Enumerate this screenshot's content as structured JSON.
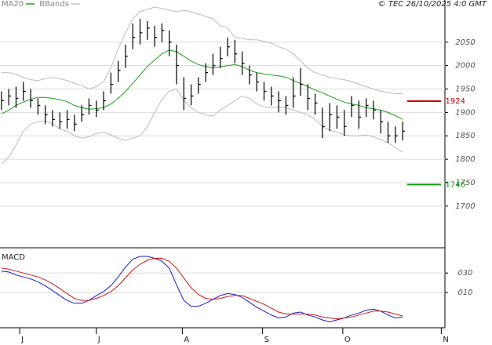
{
  "chart_data": [
    {
      "type": "ohlc",
      "annotation": "© TEC 26/10/2025 4:0 GMT",
      "x": [
        0,
        1,
        2,
        3,
        4,
        5,
        6,
        7,
        8,
        9,
        10,
        11,
        12,
        13,
        14,
        15,
        16,
        17,
        18,
        19,
        20,
        21,
        22,
        23,
        24,
        25,
        26,
        27,
        28,
        29,
        30,
        31,
        32,
        33,
        34,
        35,
        36,
        37,
        38,
        39,
        40,
        41,
        42,
        43,
        44,
        45,
        46,
        47,
        48,
        49,
        50,
        51,
        52,
        53,
        54,
        55
      ],
      "high": [
        1945,
        1950,
        1955,
        1965,
        1950,
        1930,
        1915,
        1905,
        1900,
        1905,
        1895,
        1915,
        1930,
        1925,
        1945,
        1985,
        2010,
        2045,
        2090,
        2100,
        2095,
        2085,
        2090,
        2075,
        2045,
        1975,
        1960,
        1975,
        2005,
        2025,
        2040,
        2060,
        2055,
        2030,
        2000,
        1985,
        1965,
        1955,
        1945,
        1935,
        1975,
        1995,
        1960,
        1940,
        1910,
        1920,
        1915,
        1905,
        1935,
        1925,
        1930,
        1925,
        1905,
        1880,
        1870,
        1880
      ],
      "low": [
        1905,
        1915,
        1910,
        1925,
        1910,
        1895,
        1875,
        1870,
        1865,
        1865,
        1860,
        1880,
        1895,
        1890,
        1905,
        1940,
        1965,
        1995,
        2035,
        2045,
        2055,
        2040,
        2050,
        2020,
        1960,
        1905,
        1915,
        1940,
        1965,
        1980,
        1995,
        2020,
        2005,
        1980,
        1960,
        1945,
        1925,
        1915,
        1900,
        1895,
        1910,
        1935,
        1905,
        1895,
        1845,
        1860,
        1865,
        1850,
        1890,
        1865,
        1890,
        1885,
        1855,
        1835,
        1835,
        1840
      ],
      "close": [
        1925,
        1935,
        1930,
        1945,
        1925,
        1915,
        1895,
        1885,
        1880,
        1885,
        1875,
        1895,
        1915,
        1905,
        1925,
        1960,
        1990,
        2020,
        2060,
        2070,
        2080,
        2060,
        2075,
        2050,
        2000,
        1930,
        1935,
        1960,
        1985,
        2000,
        2015,
        2040,
        2025,
        2005,
        1980,
        1965,
        1945,
        1935,
        1925,
        1915,
        1935,
        1960,
        1930,
        1920,
        1870,
        1895,
        1890,
        1870,
        1915,
        1890,
        1915,
        1905,
        1880,
        1850,
        1850,
        1860
      ],
      "bar_color": "#000000",
      "series": [
        {
          "name": "MA20",
          "color": "#1aa01a",
          "values": [
            1897,
            1905,
            1915,
            1922,
            1928,
            1932,
            1932,
            1930,
            1927,
            1923,
            1915,
            1910,
            1907,
            1908,
            1910,
            1918,
            1930,
            1945,
            1962,
            1980,
            1998,
            2012,
            2025,
            2033,
            2030,
            2020,
            2010,
            2002,
            1998,
            1995,
            1997,
            2000,
            2002,
            1998,
            1990,
            1985,
            1982,
            1980,
            1978,
            1975,
            1968,
            1962,
            1955,
            1948,
            1942,
            1935,
            1928,
            1922,
            1918,
            1915,
            1910,
            1908,
            1905,
            1900,
            1893,
            1885
          ]
        },
        {
          "name": "BBands",
          "color": "#bdbdbd",
          "upper": [
            1985,
            1985,
            1982,
            1975,
            1970,
            1968,
            1972,
            1975,
            1972,
            1968,
            1962,
            1958,
            1950,
            1955,
            1965,
            1995,
            2035,
            2070,
            2100,
            2115,
            2120,
            2125,
            2122,
            2118,
            2115,
            2118,
            2115,
            2110,
            2105,
            2100,
            2085,
            2080,
            2060,
            2058,
            2055,
            2055,
            2052,
            2048,
            2040,
            2035,
            2025,
            2010,
            1995,
            1985,
            1980,
            1975,
            1972,
            1970,
            1966,
            1960,
            1955,
            1950,
            1945,
            1943,
            1940,
            1940
          ],
          "lower": [
            1790,
            1805,
            1830,
            1860,
            1875,
            1880,
            1882,
            1875,
            1865,
            1860,
            1850,
            1845,
            1848,
            1855,
            1858,
            1852,
            1845,
            1840,
            1845,
            1850,
            1870,
            1900,
            1928,
            1945,
            1950,
            1925,
            1910,
            1900,
            1895,
            1892,
            1905,
            1915,
            1925,
            1935,
            1930,
            1918,
            1912,
            1910,
            1912,
            1910,
            1905,
            1900,
            1895,
            1885,
            1870,
            1862,
            1858,
            1852,
            1850,
            1850,
            1852,
            1848,
            1842,
            1835,
            1825,
            1815
          ]
        }
      ],
      "levels": [
        {
          "value": 1924,
          "color": "#cc0000"
        },
        {
          "value": 1746,
          "color": "#119911"
        }
      ],
      "xlim": [
        -0.2,
        60.8
      ],
      "xticks": [
        {
          "value": 2.5,
          "label": "J"
        },
        {
          "value": 13,
          "label": "J"
        },
        {
          "value": 24.8,
          "label": "A"
        },
        {
          "value": 35.8,
          "label": "S"
        },
        {
          "value": 46.8,
          "label": "O"
        },
        {
          "value": 60.3,
          "label": "N"
        }
      ],
      "ylim": [
        1611,
        2140
      ],
      "yticks": [
        1700,
        1750,
        1800,
        1850,
        1900,
        1950,
        2000,
        2050
      ],
      "grid": true
    },
    {
      "type": "line",
      "title": "MACD",
      "x": [
        0,
        1,
        2,
        3,
        4,
        5,
        6,
        7,
        8,
        9,
        10,
        11,
        12,
        13,
        14,
        15,
        16,
        17,
        18,
        19,
        20,
        21,
        22,
        23,
        24,
        25,
        26,
        27,
        28,
        29,
        30,
        31,
        32,
        33,
        34,
        35,
        36,
        37,
        38,
        39,
        40,
        41,
        42,
        43,
        44,
        45,
        46,
        47,
        48,
        49,
        50,
        51,
        52,
        53,
        54,
        55
      ],
      "series": [
        {
          "color": "#1a1acc",
          "values": [
            32,
            31,
            28,
            26,
            24,
            21,
            17,
            12,
            7,
            2,
            -1,
            -1,
            2,
            7,
            11,
            17,
            26,
            36,
            44,
            47,
            47,
            45,
            42,
            35,
            18,
            2,
            -4,
            -4,
            -1,
            3,
            7,
            9,
            8,
            5,
            0,
            -5,
            -9,
            -13,
            -16,
            -15,
            -11,
            -10,
            -13,
            -15,
            -18,
            -20,
            -18,
            -16,
            -13,
            -11,
            -8,
            -7,
            -9,
            -13,
            -16,
            -15
          ]
        },
        {
          "color": "#cc1a1a",
          "values": [
            35,
            34,
            32,
            30,
            28,
            26,
            23,
            19,
            14,
            9,
            4,
            2,
            2,
            4,
            7,
            11,
            17,
            25,
            33,
            39,
            43,
            45,
            45,
            42,
            35,
            25,
            15,
            8,
            4,
            3,
            4,
            6,
            7,
            7,
            4,
            1,
            -2,
            -6,
            -10,
            -12,
            -12,
            -12,
            -12,
            -13,
            -15,
            -16,
            -17,
            -16,
            -15,
            -13,
            -11,
            -9,
            -9,
            -10,
            -12,
            -14
          ]
        }
      ],
      "xlim": [
        -0.2,
        60.8
      ],
      "ylim": [
        -26,
        55
      ],
      "yticks": [
        {
          "value": 10,
          "label": "010"
        },
        {
          "value": 30,
          "label": "030"
        }
      ],
      "grid": true
    }
  ]
}
